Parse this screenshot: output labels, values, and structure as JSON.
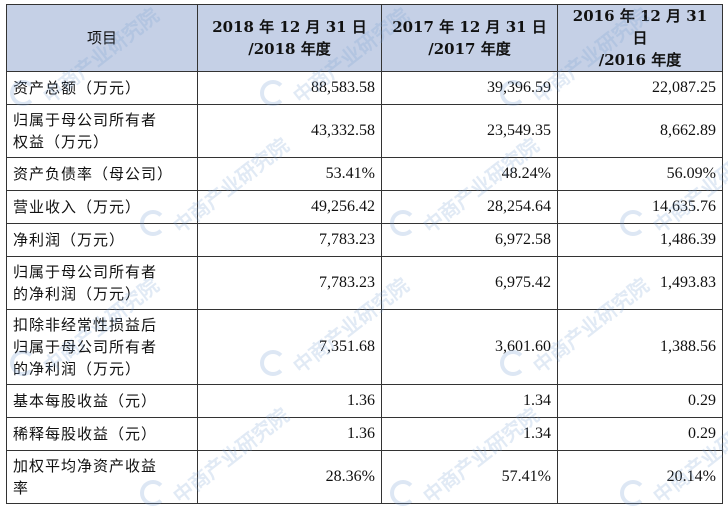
{
  "table": {
    "header": {
      "item": "项目",
      "years": [
        [
          "2018 年 12 月 31 日",
          "/2018 年度"
        ],
        [
          "2017 年 12 月 31 日",
          "/2017 年度"
        ],
        [
          "2016 年 12 月 31 日",
          "/2016 年度"
        ]
      ]
    },
    "rows": [
      {
        "label": [
          "资产总额（万元）"
        ],
        "values": [
          "88,583.58",
          "39,396.59",
          "22,087.25"
        ]
      },
      {
        "label": [
          "归属于母公司所有者",
          "权益（万元）"
        ],
        "values": [
          "43,332.58",
          "23,549.35",
          "8,662.89"
        ]
      },
      {
        "label": [
          "资产负债率（母公司）"
        ],
        "values": [
          "53.41%",
          "48.24%",
          "56.09%"
        ]
      },
      {
        "label": [
          "营业收入（万元）"
        ],
        "values": [
          "49,256.42",
          "28,254.64",
          "14,635.76"
        ]
      },
      {
        "label": [
          "净利润（万元）"
        ],
        "values": [
          "7,783.23",
          "6,972.58",
          "1,486.39"
        ]
      },
      {
        "label": [
          "归属于母公司所有者",
          "的净利润（万元）"
        ],
        "values": [
          "7,783.23",
          "6,975.42",
          "1,493.83"
        ]
      },
      {
        "label": [
          "扣除非经常性损益后",
          "归属于母公司所有者",
          "的净利润（万元）"
        ],
        "values": [
          "7,351.68",
          "3,601.60",
          "1,388.56"
        ]
      },
      {
        "label": [
          "基本每股收益（元）"
        ],
        "values": [
          "1.36",
          "1.34",
          "0.29"
        ]
      },
      {
        "label": [
          "稀释每股收益（元）"
        ],
        "values": [
          "1.36",
          "1.34",
          "0.29"
        ]
      },
      {
        "label": [
          "加权平均净资产收益",
          "率"
        ],
        "values": [
          "28.36%",
          "57.41%",
          "20.14%"
        ]
      }
    ]
  },
  "watermark": {
    "text": "中商产业研究院",
    "color": "#78a0d2"
  },
  "colors": {
    "header_bg": "#c5d0e6",
    "border": "#333333"
  }
}
